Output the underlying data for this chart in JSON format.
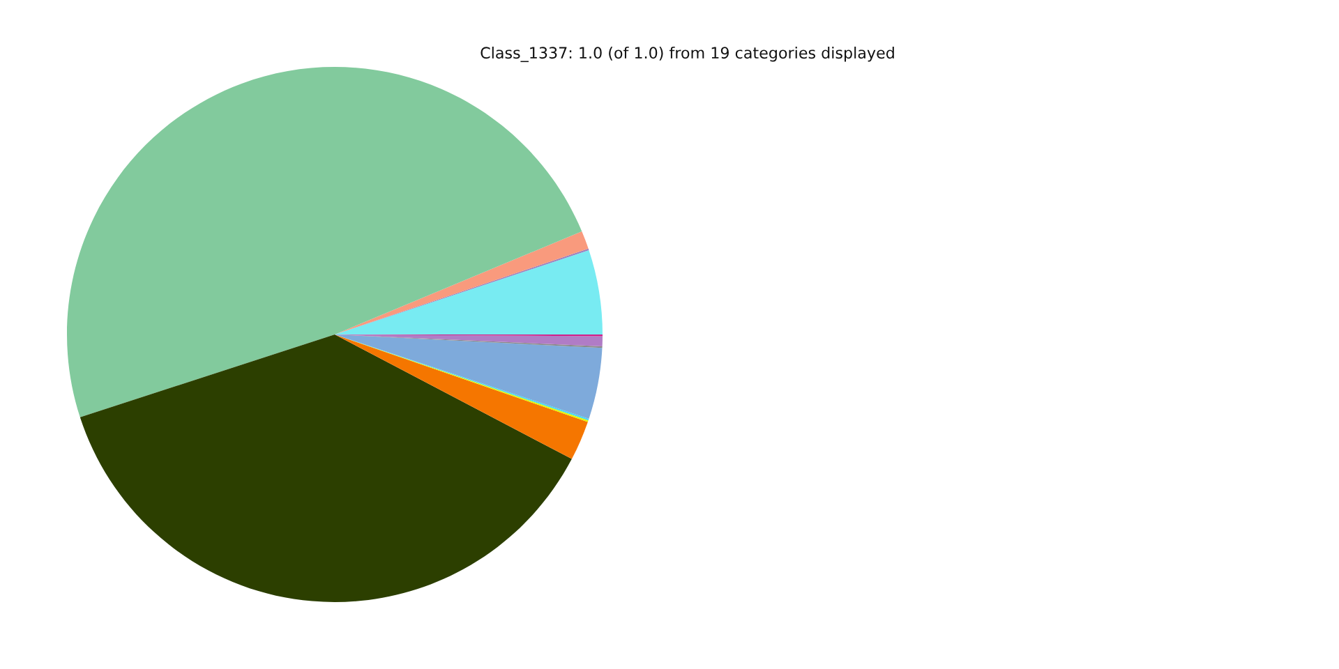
{
  "chart_data": {
    "type": "pie",
    "title": "Class_1337: 1.0 (of 1.0) from 19 categories displayed",
    "categories": [
      null,
      null,
      null,
      null,
      null,
      null,
      null,
      null,
      null,
      null,
      null,
      null
    ],
    "values": [
      5.1,
      0.1,
      1.1,
      48.7,
      37.3,
      2.4,
      0.1,
      0.1,
      4.3,
      0.1,
      0.6,
      0.1
    ],
    "colors": [
      "#78ebf2",
      "#9a82c0",
      "#f99a7d",
      "#82ca9d",
      "#2c3f00",
      "#f57600",
      "#e5f505",
      "#4ad8f0",
      "#7eaadb",
      "#8a8a8a",
      "#b07cc6",
      "#d0208a"
    ]
  }
}
